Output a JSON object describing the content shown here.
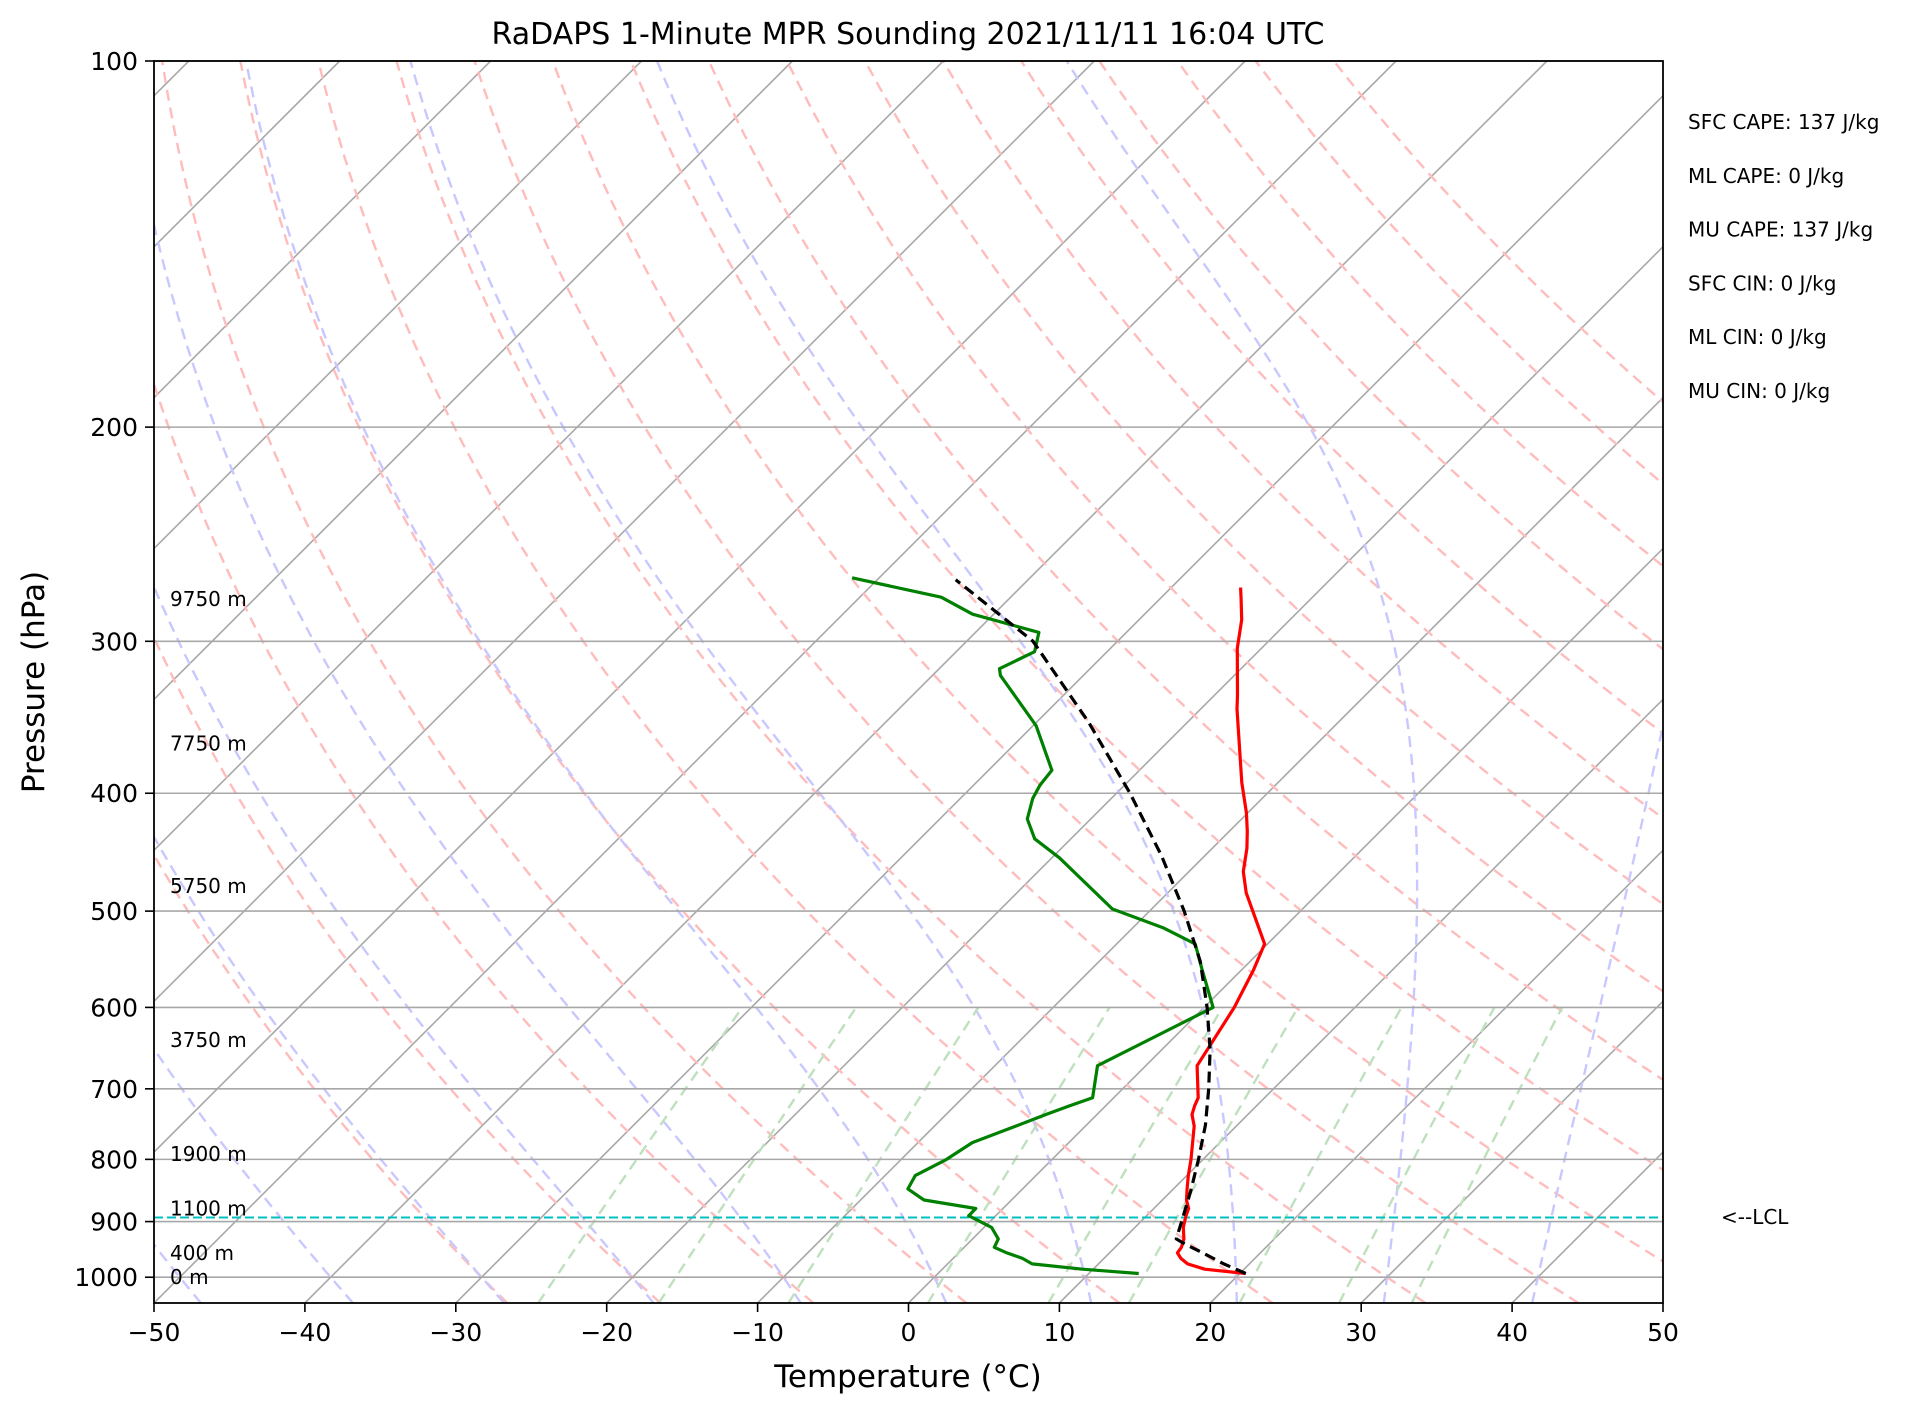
{
  "chart_data": {
    "type": "line",
    "title": "RaDAPS 1-Minute MPR Sounding 2021/11/11 16:04 UTC",
    "xlabel": "Temperature (°C)",
    "ylabel": "Pressure (hPa)",
    "xlim": [
      -50,
      50
    ],
    "ylim": [
      1050,
      100
    ],
    "yscale": "log",
    "x_ticks": [
      -50,
      -40,
      -30,
      -20,
      -10,
      0,
      10,
      20,
      30,
      40,
      50
    ],
    "x_tick_labels": [
      "−50",
      "−40",
      "−30",
      "−20",
      "−10",
      "0",
      "10",
      "20",
      "30",
      "40",
      "50"
    ],
    "y_ticks": [
      100,
      200,
      300,
      400,
      500,
      600,
      700,
      800,
      900,
      1000
    ],
    "y_tick_labels": [
      "100",
      "200",
      "300",
      "400",
      "500",
      "600",
      "700",
      "800",
      "900",
      "1000"
    ],
    "grid": true,
    "skew": "45 degrees",
    "background_lines": {
      "isotherms_color": "#a8a8a8",
      "dry_adiabats_color": "#ffbcbc",
      "moist_adiabats_color": "#c8c8ff",
      "mixing_ratio_color": "#bfe0bf",
      "dry_adiabat_thetas_c": [
        -30,
        -20,
        -10,
        0,
        10,
        20,
        30,
        40,
        50,
        60,
        70,
        80,
        90,
        100,
        110,
        120,
        130,
        140,
        150
      ],
      "moist_adiabat_start_temps_c": [
        -50,
        -40,
        -30,
        -20,
        -10,
        0,
        10,
        20,
        30,
        40,
        50
      ],
      "mixing_ratio_g_kg": [
        0.5,
        1,
        2,
        4,
        7,
        10,
        16,
        24,
        32
      ]
    },
    "series": [
      {
        "key": "temperature",
        "color": "#ff0000",
        "points": [
          [
            20.4,
            993
          ],
          [
            17.4,
            985
          ],
          [
            15.9,
            975
          ],
          [
            15.1,
            965
          ],
          [
            14.5,
            955
          ],
          [
            14.4,
            945
          ],
          [
            14.0,
            930
          ],
          [
            13.2,
            910
          ],
          [
            12.6,
            890
          ],
          [
            12.3,
            878
          ],
          [
            11.6,
            864
          ],
          [
            10.9,
            846
          ],
          [
            10.1,
            825
          ],
          [
            9.2,
            800
          ],
          [
            8.2,
            775
          ],
          [
            7.2,
            751
          ],
          [
            6.3,
            735
          ],
          [
            5.9,
            723
          ],
          [
            5.6,
            712
          ],
          [
            3.4,
            670
          ],
          [
            2.0,
            600
          ],
          [
            0.8,
            559
          ],
          [
            -0.2,
            532
          ],
          [
            -4.8,
            483
          ],
          [
            -6.4,
            464
          ],
          [
            -7.7,
            444
          ],
          [
            -8.8,
            430
          ],
          [
            -10.1,
            415
          ],
          [
            -12.4,
            392
          ],
          [
            -17.6,
            341
          ],
          [
            -18.5,
            332
          ],
          [
            -21.6,
            304
          ],
          [
            -23.2,
            288
          ],
          [
            -24.6,
            277
          ],
          [
            -25.4,
            271
          ]
        ]
      },
      {
        "key": "dewpoint",
        "color": "#008000",
        "points": [
          [
            13.3,
            993
          ],
          [
            9.3,
            985
          ],
          [
            5.6,
            975
          ],
          [
            4.6,
            965
          ],
          [
            3.2,
            955
          ],
          [
            2.0,
            945
          ],
          [
            1.7,
            930
          ],
          [
            0.5,
            910
          ],
          [
            -1.8,
            890
          ],
          [
            -1.8,
            878
          ],
          [
            -5.8,
            864
          ],
          [
            -7.6,
            846
          ],
          [
            -8.0,
            825
          ],
          [
            -7.0,
            800
          ],
          [
            -6.4,
            775
          ],
          [
            -4.6,
            751
          ],
          [
            -3.4,
            735
          ],
          [
            -2.4,
            723
          ],
          [
            -1.4,
            712
          ],
          [
            -3.2,
            670
          ],
          [
            0.6,
            600
          ],
          [
            -2.6,
            559
          ],
          [
            -4.8,
            532
          ],
          [
            -8.0,
            516
          ],
          [
            -12.6,
            498
          ],
          [
            -19.5,
            452
          ],
          [
            -22.4,
            436
          ],
          [
            -24.2,
            420
          ],
          [
            -25.2,
            404
          ],
          [
            -25.6,
            394
          ],
          [
            -25.8,
            383
          ],
          [
            -29.8,
            352
          ],
          [
            -35.5,
            320
          ],
          [
            -36.0,
            316
          ],
          [
            -34.8,
            306
          ],
          [
            -35.8,
            295
          ],
          [
            -41.4,
            285
          ],
          [
            -44.6,
            276
          ],
          [
            -51.8,
            266
          ]
        ]
      },
      {
        "key": "parcel",
        "color": "#000000",
        "points": [
          [
            20.4,
            993
          ],
          [
            18.3,
            975
          ],
          [
            16.4,
            957
          ],
          [
            14.5,
            940
          ],
          [
            13.5,
            930
          ],
          [
            12.7,
            900
          ],
          [
            11.3,
            850
          ],
          [
            9.7,
            800
          ],
          [
            7.9,
            750
          ],
          [
            5.7,
            700
          ],
          [
            3.2,
            650
          ],
          [
            0.2,
            600
          ],
          [
            -3.3,
            550
          ],
          [
            -7.7,
            500
          ],
          [
            -12.9,
            450
          ],
          [
            -19.1,
            400
          ],
          [
            -26.5,
            350
          ],
          [
            -35.6,
            300
          ],
          [
            -44.8,
            267
          ]
        ]
      }
    ],
    "lcl_pressure_hpa": 893,
    "lcl_line_color": "#00bfbf",
    "lcl_label": "<--LCL",
    "height_labels": [
      {
        "text": "9750 m",
        "pressure_hpa": 277
      },
      {
        "text": "7750 m",
        "pressure_hpa": 364
      },
      {
        "text": "5750 m",
        "pressure_hpa": 477
      },
      {
        "text": "3750 m",
        "pressure_hpa": 638
      },
      {
        "text": "1900 m",
        "pressure_hpa": 792
      },
      {
        "text": "1100 m",
        "pressure_hpa": 878
      },
      {
        "text": "400 m",
        "pressure_hpa": 955
      },
      {
        "text": "0 m",
        "pressure_hpa": 1000
      }
    ],
    "annotations": [
      "SFC CAPE: 137 J/kg",
      "ML CAPE: 0 J/kg",
      "MU CAPE: 137 J/kg",
      "SFC CIN: 0 J/kg",
      "ML CIN: 0 J/kg",
      "MU CIN: 0 J/kg"
    ]
  }
}
